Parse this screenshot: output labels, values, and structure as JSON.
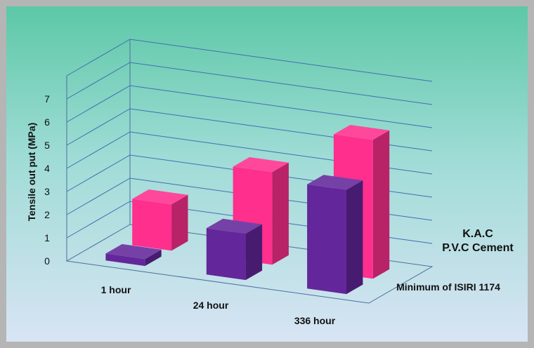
{
  "chart_data": {
    "type": "bar",
    "title": "",
    "xlabel": "",
    "ylabel": "Tensile out put (MPa)",
    "ylim": [
      0,
      7
    ],
    "yticks": [
      0,
      1,
      2,
      3,
      4,
      5,
      6,
      7
    ],
    "categories": [
      "1 hour",
      "24 hour",
      "336 hour"
    ],
    "series": [
      {
        "name": "K.A.C P.V.C Cement",
        "values": [
          2.0,
          4.0,
          6.0
        ],
        "color": "#ff2f8e"
      },
      {
        "name": "Minimum of ISIRI 1174",
        "values": [
          0.3,
          2.0,
          4.5
        ],
        "color": "#63279b"
      }
    ],
    "grid": true,
    "legend": "right, along depth axis",
    "style": "3D clustered column",
    "background_gradient": [
      "#5cc8a6",
      "#d8e4f4"
    ]
  }
}
